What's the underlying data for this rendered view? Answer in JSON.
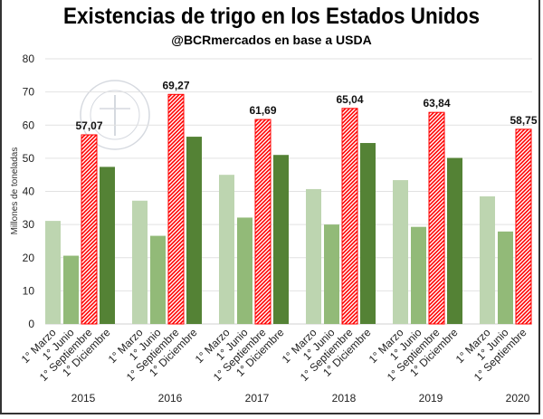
{
  "chart_data": {
    "type": "bar",
    "title": "Existencias de trigo en los Estados Unidos",
    "subtitle": "@BCRmercados en base a USDA",
    "ylabel": "Millones de toneladas",
    "xlabel": "",
    "ylim": [
      0,
      80
    ],
    "yticks": [
      0,
      10,
      20,
      30,
      40,
      50,
      60,
      70,
      80
    ],
    "grid": true,
    "legend": "none",
    "watermark": "BOLSA DE COMERCIO DE ROSARIO",
    "categories": [
      "2015",
      "2016",
      "2017",
      "2018",
      "2019",
      "2020"
    ],
    "subcategories": [
      "1° Marzo",
      "1° Junio",
      "1° Septiembre",
      "1° Diciembre"
    ],
    "series": [
      {
        "values": [
          31.1,
          37.2,
          45.0,
          40.7,
          43.4,
          38.5
        ],
        "color": "#bdd5b0"
      },
      {
        "values": [
          20.6,
          26.6,
          32.1,
          30.0,
          29.3,
          27.9
        ],
        "color": "#92ba78"
      },
      {
        "values": [
          57.07,
          69.27,
          61.69,
          65.04,
          63.84,
          58.75
        ],
        "color": "#ff0000",
        "pattern": "hatched",
        "data_labels": [
          "57,07",
          "69,27",
          "61,69",
          "65,04",
          "63,84",
          "58,75"
        ]
      },
      {
        "values": [
          47.4,
          56.5,
          51.0,
          54.6,
          50.1,
          null
        ],
        "color": "#548235"
      }
    ]
  }
}
